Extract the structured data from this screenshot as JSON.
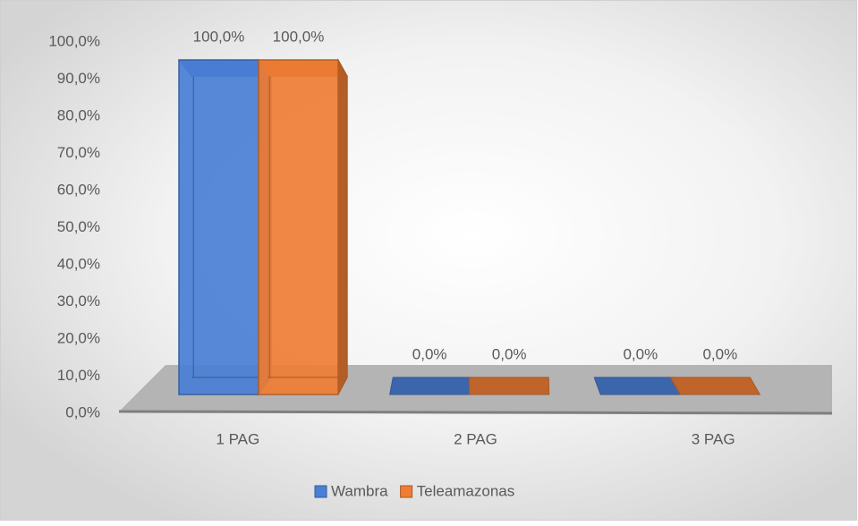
{
  "chart_data": {
    "type": "bar3d",
    "categories": [
      "1 PAG",
      "2 PAG",
      "3 PAG"
    ],
    "series": [
      {
        "name": "Wambra",
        "color": "#4a7fd6",
        "values": [
          100,
          0,
          0
        ],
        "value_labels": [
          "100,0%",
          "0,0%",
          "0,0%"
        ]
      },
      {
        "name": "Teleamazonas",
        "color": "#ef7d34",
        "values": [
          100,
          0,
          0
        ],
        "value_labels": [
          "100,0%",
          "0,0%",
          "0,0%"
        ]
      }
    ],
    "ylim": [
      0,
      100
    ],
    "yticks": [
      {
        "value": 0,
        "label": "0,0%"
      },
      {
        "value": 10,
        "label": "10,0%"
      },
      {
        "value": 20,
        "label": "20,0%"
      },
      {
        "value": 30,
        "label": "30,0%"
      },
      {
        "value": 40,
        "label": "40,0%"
      },
      {
        "value": 50,
        "label": "50,0%"
      },
      {
        "value": 60,
        "label": "60,0%"
      },
      {
        "value": 70,
        "label": "70,0%"
      },
      {
        "value": 80,
        "label": "80,0%"
      },
      {
        "value": 90,
        "label": "90,0%"
      },
      {
        "value": 100,
        "label": "100,0%"
      }
    ],
    "legend": "bottom"
  }
}
